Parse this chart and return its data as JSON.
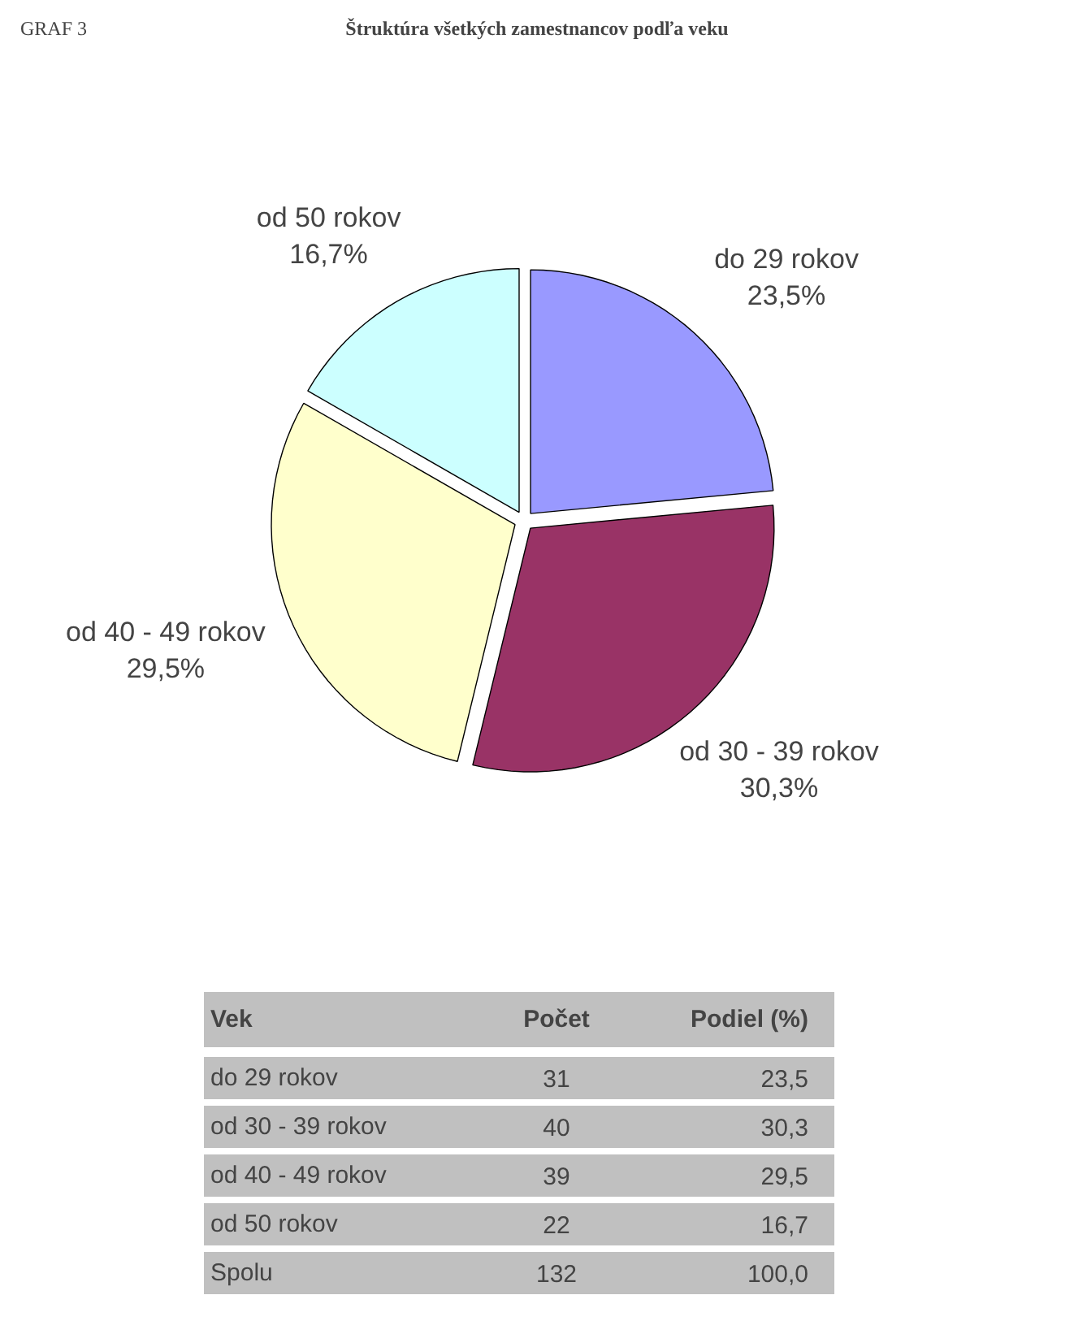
{
  "chart_data": {
    "type": "pie",
    "title": "Štruktúra všetkých zamestnancov podľa veku",
    "categories": [
      "do 29 rokov",
      "od 30 - 39 rokov",
      "od 40 - 49 rokov",
      "od 50 rokov"
    ],
    "values": [
      23.5,
      30.3,
      29.5,
      16.7
    ],
    "value_labels": [
      "23,5%",
      "30,3%",
      "29,5%",
      "16,7%"
    ],
    "colors": [
      "#9999ff",
      "#993366",
      "#ffffcc",
      "#ccffff"
    ],
    "legend": false,
    "annotations": [
      "GRAF 3",
      "Vek",
      "Počet",
      "Podiel (%)",
      "do 29 rokov",
      "31",
      "23,5",
      "od 30 - 39 rokov",
      "40",
      "30,3",
      "od 40 - 49 rokov",
      "39",
      "29,5",
      "od 50 rokov",
      "22",
      "16,7",
      "Spolu",
      "132",
      "100,0"
    ]
  }
}
